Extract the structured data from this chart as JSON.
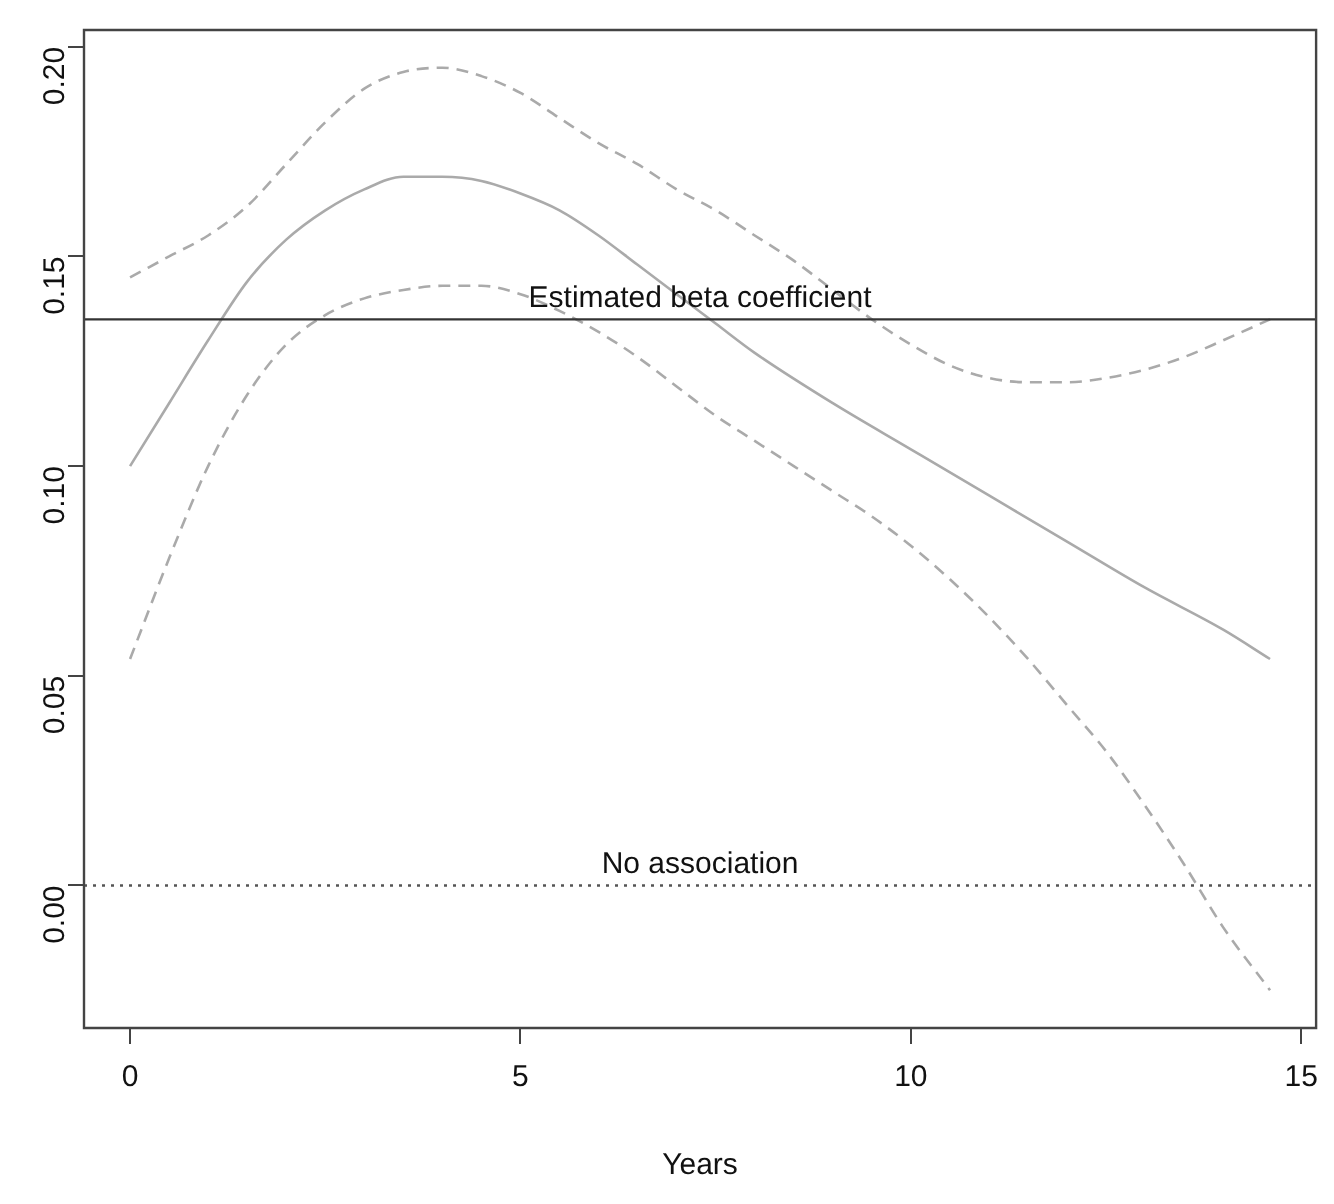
{
  "chart_data": {
    "type": "line",
    "xlabel": "Years",
    "xlim": [
      -0.59,
      15.19
    ],
    "xticks": [
      0,
      5,
      10,
      15
    ],
    "ylim": [
      -0.034,
      0.204
    ],
    "yticks": [
      {
        "value": 0,
        "label": "0.00"
      },
      0.05,
      {
        "value": 0.1,
        "label": "0.10"
      },
      0.15,
      {
        "value": 0.2,
        "label": "0.20"
      }
    ],
    "grid": false,
    "legend": false,
    "marker": "none",
    "series": [
      {
        "color": "#aaaaaa",
        "line_style": "solid",
        "x": [
          0,
          0.5,
          1,
          1.5,
          2,
          2.5,
          3,
          3.5,
          4,
          4.5,
          5,
          5.5,
          6,
          6.5,
          7,
          7.5,
          8,
          9,
          10,
          11,
          12,
          13,
          14,
          14.6
        ],
        "values": [
          0.1,
          0.115,
          0.13,
          0.144,
          0.154,
          0.161,
          0.166,
          0.169,
          0.169,
          0.168,
          0.165,
          0.161,
          0.155,
          0.148,
          0.141,
          0.134,
          0.127,
          0.115,
          0.104,
          0.093,
          0.082,
          0.071,
          0.061,
          0.054
        ]
      },
      {
        "color": "#aaaaaa",
        "line_style": "dashed",
        "x": [
          0,
          0.5,
          1,
          1.5,
          2,
          2.5,
          3,
          3.5,
          4,
          4.5,
          5,
          5.5,
          6,
          6.5,
          7,
          7.5,
          8,
          8.5,
          9,
          9.5,
          10,
          10.5,
          11,
          11.5,
          12,
          12.5,
          13,
          13.5,
          14,
          14.6
        ],
        "values": [
          0.145,
          0.15,
          0.155,
          0.162,
          0.172,
          0.182,
          0.19,
          0.194,
          0.195,
          0.193,
          0.189,
          0.183,
          0.177,
          0.172,
          0.166,
          0.161,
          0.155,
          0.149,
          0.142,
          0.135,
          0.129,
          0.124,
          0.121,
          0.12,
          0.12,
          0.121,
          0.123,
          0.126,
          0.13,
          0.135
        ]
      },
      {
        "color": "#aaaaaa",
        "line_style": "dashed",
        "x": [
          0,
          0.5,
          1,
          1.5,
          2,
          2.5,
          3,
          3.5,
          4,
          4.5,
          5,
          5.5,
          6,
          6.5,
          7,
          7.5,
          8,
          8.5,
          9,
          9.5,
          10,
          10.5,
          11,
          11.5,
          12,
          12.5,
          13,
          13.5,
          14,
          14.6
        ],
        "values": [
          0.054,
          0.078,
          0.1,
          0.117,
          0.129,
          0.136,
          0.14,
          0.142,
          0.143,
          0.143,
          0.141,
          0.137,
          0.132,
          0.126,
          0.119,
          0.112,
          0.106,
          0.1,
          0.094,
          0.088,
          0.081,
          0.073,
          0.064,
          0.054,
          0.043,
          0.032,
          0.019,
          0.005,
          -0.01,
          -0.025
        ]
      }
    ],
    "ref_lines": [
      {
        "axis": "y",
        "value": 0.135,
        "label": "Estimated beta coefficient",
        "color": "#333333",
        "line_style": "solid"
      },
      {
        "axis": "y",
        "value": 0,
        "label": "No association",
        "color": "#555555",
        "line_style": "dotted"
      }
    ]
  }
}
